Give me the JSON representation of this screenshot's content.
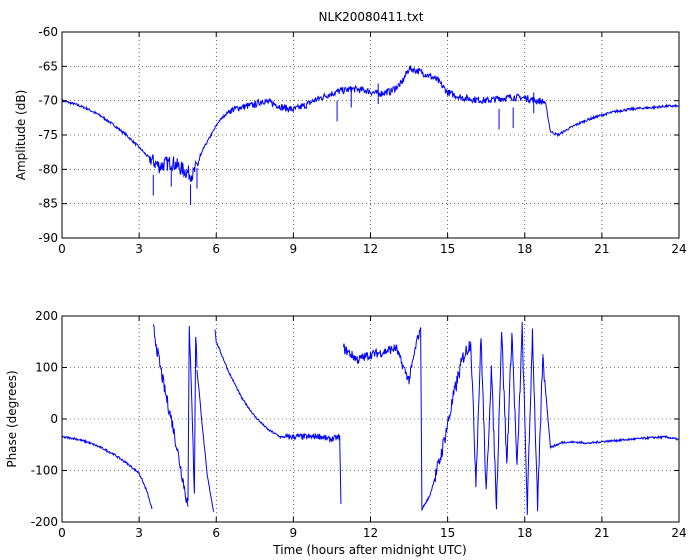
{
  "figure": {
    "title": "NLK20080411.txt",
    "xlabel": "Time (hours after midnight UTC)"
  },
  "chart_data": [
    {
      "type": "line",
      "name": "amplitude",
      "ylabel": "Amplitude (dB)",
      "xlim": [
        0,
        24
      ],
      "ylim": [
        -90,
        -60
      ],
      "xticks": [
        0,
        3,
        6,
        9,
        12,
        15,
        18,
        21,
        24
      ],
      "yticks": [
        -90,
        -85,
        -80,
        -75,
        -70,
        -65,
        -60
      ],
      "grid": true,
      "color": "#0000ff",
      "series": [
        {
          "x": [
            0,
            0.5,
            1,
            1.5,
            2,
            2.5,
            3,
            3.3,
            3.6,
            3.8,
            4.0,
            4.3,
            4.6,
            4.9,
            5.1,
            5.3,
            5.5,
            5.8,
            6.1,
            6.5,
            6.9,
            7.2,
            7.5,
            7.8,
            8.2,
            8.6,
            9.0,
            9.4,
            9.8,
            10.3,
            10.8,
            11.3,
            11.8,
            12.3,
            12.8,
            13.2,
            13.5,
            13.8,
            14.2,
            14.6,
            15.0,
            15.5,
            16.0,
            16.5,
            17.0,
            17.5,
            18.0,
            18.5,
            18.8,
            19.0,
            19.3,
            19.6,
            20.0,
            20.5,
            21.0,
            21.5,
            22.0,
            22.5,
            23.0,
            23.5,
            24
          ],
          "y": [
            -70,
            -70.5,
            -71.2,
            -72.2,
            -73.5,
            -75,
            -76.8,
            -78,
            -79,
            -79.6,
            -79.2,
            -79.0,
            -79.8,
            -80.5,
            -80.8,
            -79,
            -77,
            -75,
            -73,
            -71.5,
            -71,
            -70.8,
            -70.6,
            -70,
            -70.4,
            -71,
            -71.3,
            -70.8,
            -70,
            -69.2,
            -68.6,
            -68.3,
            -68.5,
            -69,
            -68.6,
            -67.5,
            -65.3,
            -65.6,
            -66.2,
            -67.0,
            -68.8,
            -69.5,
            -69.8,
            -70.0,
            -69.7,
            -69.5,
            -69.6,
            -70.0,
            -70.2,
            -74.5,
            -75.0,
            -74.3,
            -73.5,
            -72.7,
            -72.1,
            -71.6,
            -71.3,
            -71.1,
            -71.0,
            -70.8,
            -70.8
          ]
        }
      ],
      "dips": [
        {
          "x": 3.55,
          "y": -83.8
        },
        {
          "x": 4.25,
          "y": -82.5
        },
        {
          "x": 5.0,
          "y": -85.2
        },
        {
          "x": 5.25,
          "y": -82.8
        },
        {
          "x": 10.7,
          "y": -73.0
        },
        {
          "x": 11.25,
          "y": -71.0
        },
        {
          "x": 12.3,
          "y": -70.5
        },
        {
          "x": 17.0,
          "y": -74.2
        },
        {
          "x": 17.55,
          "y": -74.0
        },
        {
          "x": 18.35,
          "y": -71.8
        }
      ]
    },
    {
      "type": "line",
      "name": "phase",
      "ylabel": "Phase (degrees)",
      "xlim": [
        0,
        24
      ],
      "ylim": [
        -200,
        200
      ],
      "xticks": [
        0,
        3,
        6,
        9,
        12,
        15,
        18,
        21,
        24
      ],
      "yticks": [
        -200,
        -100,
        0,
        100,
        200
      ],
      "grid": true,
      "color": "#0000ff",
      "segments": [
        {
          "x": [
            0,
            0.5,
            1,
            1.5,
            2,
            2.5,
            3,
            3.3,
            3.5
          ],
          "y": [
            -35,
            -38,
            -45,
            -55,
            -68,
            -85,
            -105,
            -140,
            -175
          ]
        },
        {
          "x": [
            3.55,
            3.6,
            3.75,
            4.0,
            4.3,
            4.6,
            4.9
          ],
          "y": [
            175,
            165,
            120,
            55,
            -10,
            -90,
            -170
          ]
        },
        {
          "x": [
            4.9,
            4.95,
            5.0,
            5.05,
            5.1,
            5.15,
            5.2,
            5.25
          ],
          "y": [
            -170,
            175,
            120,
            40,
            -60,
            -150,
            170,
            100
          ]
        },
        {
          "x": [
            5.25,
            5.45,
            5.65,
            5.9
          ],
          "y": [
            100,
            -10,
            -110,
            -180
          ]
        },
        {
          "x": [
            5.95,
            6.0,
            6.5,
            7.0,
            7.5,
            8.0,
            8.5,
            8.8
          ],
          "y": [
            175,
            150,
            90,
            40,
            5,
            -20,
            -35,
            -35
          ]
        },
        {
          "x": [
            8.8,
            9.2,
            9.6,
            10.0,
            10.4,
            10.8,
            10.85
          ],
          "y": [
            -35,
            -34,
            -35,
            -33,
            -40,
            -35,
            -165
          ]
        },
        {
          "x": [
            10.95,
            11.0,
            11.5,
            12.0,
            12.5,
            13.0,
            13.2,
            13.5,
            13.8,
            13.95
          ],
          "y": [
            140,
            135,
            115,
            125,
            130,
            138,
            110,
            75,
            150,
            178
          ]
        },
        {
          "x": [
            13.95,
            14.0,
            14.3,
            14.7,
            15.0,
            15.3,
            15.6,
            15.9
          ],
          "y": [
            178,
            -175,
            -150,
            -80,
            -10,
            60,
            120,
            150
          ]
        },
        {
          "x": [
            15.9,
            16.1,
            16.3,
            16.5,
            16.7,
            16.9,
            17.1,
            17.3,
            17.5,
            17.7,
            17.9,
            18.1,
            18.3,
            18.5,
            18.7
          ],
          "y": [
            150,
            -120,
            160,
            -150,
            100,
            -170,
            175,
            -90,
            170,
            -100,
            175,
            -175,
            170,
            -175,
            120
          ]
        },
        {
          "x": [
            18.7,
            19.0,
            19.5,
            20.0,
            20.5,
            21.0,
            21.5,
            22.0,
            22.5,
            23.0,
            23.5,
            24
          ],
          "y": [
            120,
            -55,
            -45,
            -45,
            -47,
            -44,
            -42,
            -40,
            -38,
            -36,
            -35,
            -40
          ]
        }
      ]
    }
  ]
}
